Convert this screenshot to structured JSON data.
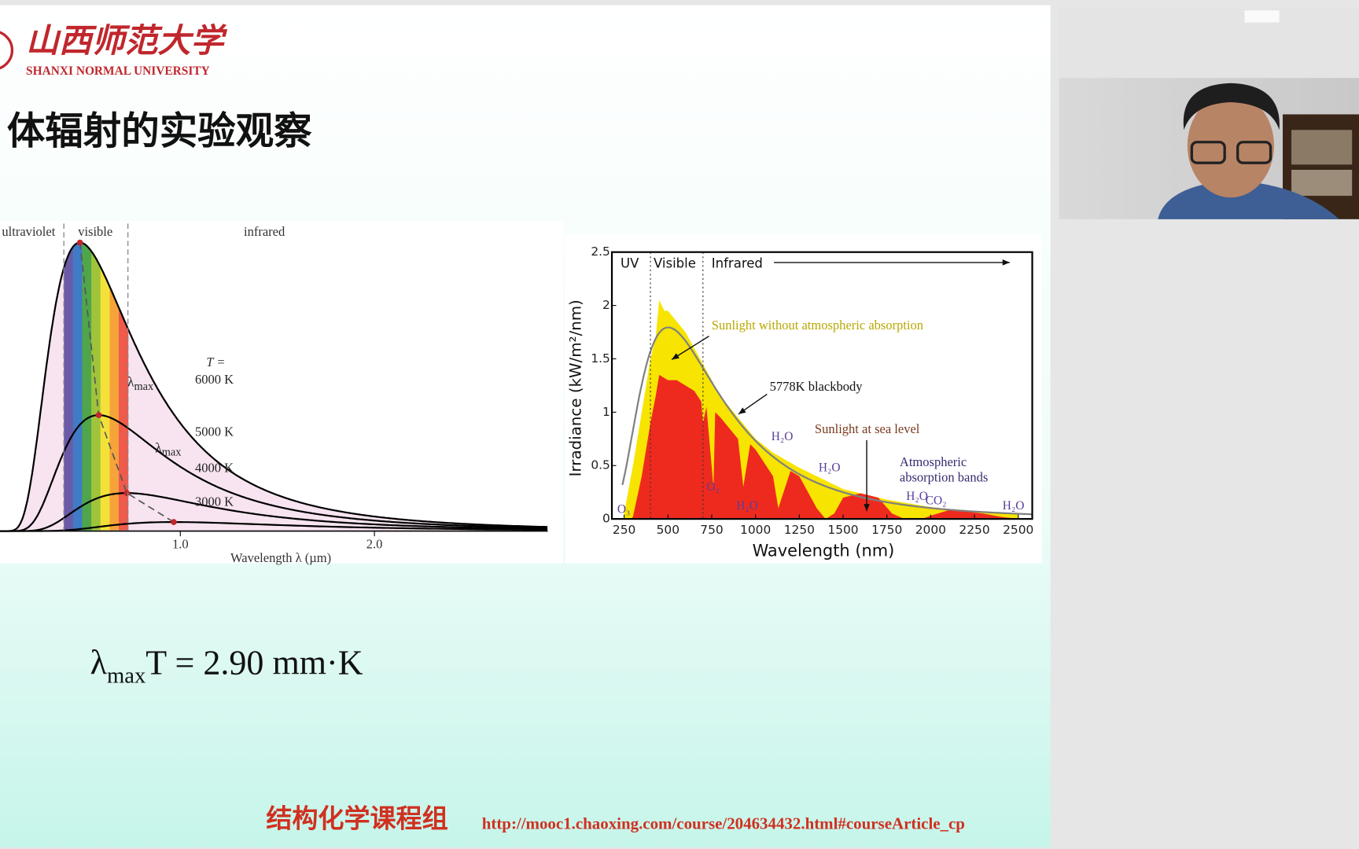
{
  "header": {
    "logo_name": "山西师范大学",
    "logo_english": "SHANXI NORMAL UNIVERSITY"
  },
  "title": "体辐射的实验观察",
  "chart_data": [
    {
      "type": "line",
      "regions": [
        "ultraviolet",
        "visible",
        "infrared"
      ],
      "visible_range": [
        0.4,
        0.73
      ],
      "temperature_heading": "T =",
      "series": [
        {
          "name": "6000 K",
          "temperature": 6000,
          "color": "#000000"
        },
        {
          "name": "5000 K",
          "temperature": 5000,
          "color": "#000000"
        },
        {
          "name": "4000 K",
          "temperature": 4000,
          "color": "#000000"
        },
        {
          "name": "3000 K",
          "temperature": 3000,
          "color": "#000000"
        }
      ],
      "peak_labels": [
        {
          "symbol": "λ",
          "subscript": "max"
        },
        {
          "symbol": "λ",
          "subscript": "max"
        }
      ],
      "x_label": "Wavelength  λ  (µm)",
      "xlim": [
        0.071,
        2.893
      ],
      "xticks": [
        {
          "value": 1,
          "label": "1.0"
        },
        {
          "value": 2,
          "label": "2.0"
        }
      ]
    },
    {
      "type": "area",
      "regions": [
        "UV",
        "Visible",
        "Infrared"
      ],
      "region_boundaries": [
        400,
        700
      ],
      "blackbody_temperature": 5778,
      "blackbody_color": "#808080",
      "annotations": {
        "blackbody": "5778K blackbody",
        "bands": [
          "Atmospheric",
          "absorption bands"
        ]
      },
      "absorbers": [
        {
          "label": "O₃",
          "x": 250
        },
        {
          "label": "O₂",
          "x": 760
        },
        {
          "label": "H₂O",
          "x": 930
        },
        {
          "label": "H₂O",
          "x": 1130
        },
        {
          "label": "H₂O",
          "x": 1400
        },
        {
          "label": "H₂O",
          "x": 1900
        },
        {
          "label": "CO₂",
          "x": 2010
        },
        {
          "label": "H₂O",
          "x": 2450
        }
      ],
      "series": [
        {
          "name": "Sunlight without atmospheric absorption",
          "color": "#f7e400",
          "x": [
            250,
            300,
            350,
            400,
            430,
            450,
            480,
            500,
            550,
            600,
            650,
            700,
            800,
            900,
            1000,
            1100,
            1250,
            1500,
            1750,
            2000,
            2250,
            2500
          ],
          "values": [
            0.05,
            0.5,
            1.0,
            1.5,
            1.7,
            2.05,
            1.95,
            1.95,
            1.85,
            1.75,
            1.6,
            1.45,
            1.15,
            0.95,
            0.75,
            0.62,
            0.48,
            0.28,
            0.18,
            0.11,
            0.07,
            0.05
          ]
        },
        {
          "name": "Sunlight at sea level",
          "color": "#ee2a1f",
          "x": [
            290,
            300,
            350,
            400,
            430,
            450,
            500,
            550,
            600,
            650,
            690,
            700,
            720,
            760,
            770,
            800,
            900,
            930,
            970,
            1000,
            1100,
            1130,
            1150,
            1200,
            1250,
            1350,
            1400,
            1450,
            1500,
            1600,
            1700,
            1780,
            1850,
            1950,
            2000,
            2100,
            2200,
            2300,
            2400,
            2500
          ],
          "values": [
            0,
            0.02,
            0.4,
            0.9,
            1.15,
            1.35,
            1.3,
            1.3,
            1.25,
            1.2,
            1.1,
            0.9,
            1.05,
            0.3,
            1.0,
            0.95,
            0.75,
            0.3,
            0.7,
            0.65,
            0.4,
            0.1,
            0.2,
            0.45,
            0.4,
            0.1,
            0,
            0.05,
            0.2,
            0.24,
            0.2,
            0.05,
            0,
            0,
            0.03,
            0.08,
            0.07,
            0.05,
            0.02,
            0
          ]
        }
      ],
      "x_label": "Wavelength (nm)",
      "y_label": "Irradiance (kW/m²/nm)",
      "xlim": [
        180,
        2580
      ],
      "ylim": [
        0,
        2.5
      ],
      "xticks": [
        250,
        500,
        750,
        1000,
        1250,
        1500,
        1750,
        2000,
        2250,
        2500
      ],
      "yticks": [
        0,
        0.5,
        1,
        1.5,
        2,
        2.5
      ]
    }
  ],
  "formula": {
    "symbol": "λ",
    "subscript": "max",
    "rest": "T = 2.90 mm·K"
  },
  "footer": {
    "group": "结构化学课程组",
    "url": "http://mooc1.chaoxing.com/course/204634432.html#courseArticle_cp"
  }
}
